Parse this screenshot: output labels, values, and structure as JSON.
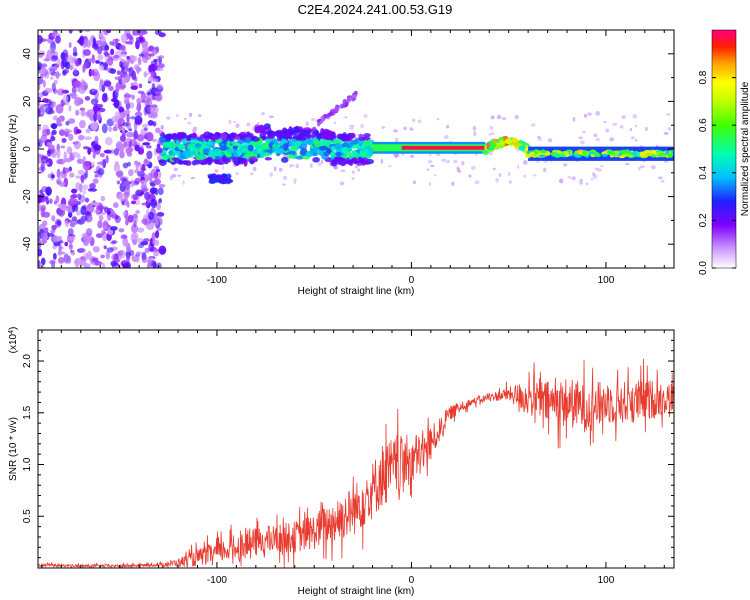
{
  "figure": {
    "title": "C2E4.2024.241.00.53.G19"
  },
  "chart_data": [
    {
      "type": "heatmap",
      "xlabel": "Height of straight line (km)",
      "ylabel": "Frequency (Hz)",
      "xlim": [
        -192,
        135
      ],
      "ylim": [
        -50,
        50
      ],
      "xticks": [
        -100,
        0,
        100
      ],
      "yticks": [
        -40,
        -20,
        0,
        20,
        40
      ],
      "colorbar": {
        "label": "Normalized spectral amplitude",
        "range": [
          0.0,
          1.0
        ],
        "ticks": [
          0.0,
          0.2,
          0.4,
          0.6,
          0.8
        ]
      },
      "features": [
        {
          "name": "noise",
          "x_range": [
            -192,
            -128
          ],
          "freq_range": [
            -50,
            50
          ],
          "amplitude": 0.1
        },
        {
          "name": "blobs",
          "x_range": [
            -128,
            -20
          ],
          "freq_center": 0,
          "amplitude": 0.35
        },
        {
          "name": "streak",
          "x_range": [
            -48,
            -28
          ],
          "freq_range": [
            10,
            23
          ],
          "amplitude": 0.08
        },
        {
          "name": "strong-line",
          "x_range": [
            -20,
            38
          ],
          "freq_center": 0.5,
          "amplitude": 0.95
        },
        {
          "name": "bump",
          "x_range": [
            38,
            60
          ],
          "freq_center": 3,
          "amplitude": 0.7
        },
        {
          "name": "flat-line",
          "x_range": [
            60,
            135
          ],
          "freq_center": -2,
          "amplitude": 0.6
        }
      ]
    },
    {
      "type": "line",
      "xlabel": "Height of straight line (km)",
      "ylabel": "SNR (10 * v/v)",
      "yscale_label": "(x10",
      "yscale_exp": "4",
      "y_multiplier": 10000,
      "xlim": [
        -192,
        135
      ],
      "ylim": [
        0.0,
        2.3
      ],
      "xticks": [
        -100,
        0,
        100
      ],
      "yticks": [
        0.5,
        1.0,
        1.5,
        2.0
      ],
      "color": "#e83a2e",
      "series": [
        {
          "x": [
            -192,
            -170,
            -150,
            -130,
            -120,
            -110,
            -100,
            -90,
            -80,
            -70,
            -60,
            -50,
            -40,
            -30,
            -20,
            -15,
            -10,
            -5,
            0,
            5,
            10,
            15,
            20,
            25,
            30,
            40,
            50,
            60,
            70,
            80,
            90,
            100,
            110,
            120,
            135
          ],
          "y": [
            0.03,
            0.02,
            0.02,
            0.03,
            0.05,
            0.1,
            0.15,
            0.2,
            0.25,
            0.28,
            0.3,
            0.35,
            0.45,
            0.55,
            0.75,
            0.9,
            0.95,
            1.0,
            1.05,
            1.1,
            1.2,
            1.35,
            1.5,
            1.55,
            1.6,
            1.65,
            1.68,
            1.65,
            1.6,
            1.6,
            1.55,
            1.6,
            1.6,
            1.62,
            1.65
          ],
          "spread": [
            0.02,
            0.02,
            0.02,
            0.02,
            0.06,
            0.12,
            0.15,
            0.18,
            0.2,
            0.2,
            0.22,
            0.25,
            0.3,
            0.35,
            0.4,
            0.45,
            0.45,
            0.4,
            0.35,
            0.3,
            0.25,
            0.15,
            0.1,
            0.08,
            0.05,
            0.05,
            0.1,
            0.25,
            0.3,
            0.35,
            0.35,
            0.3,
            0.3,
            0.3,
            0.2
          ]
        }
      ]
    }
  ]
}
